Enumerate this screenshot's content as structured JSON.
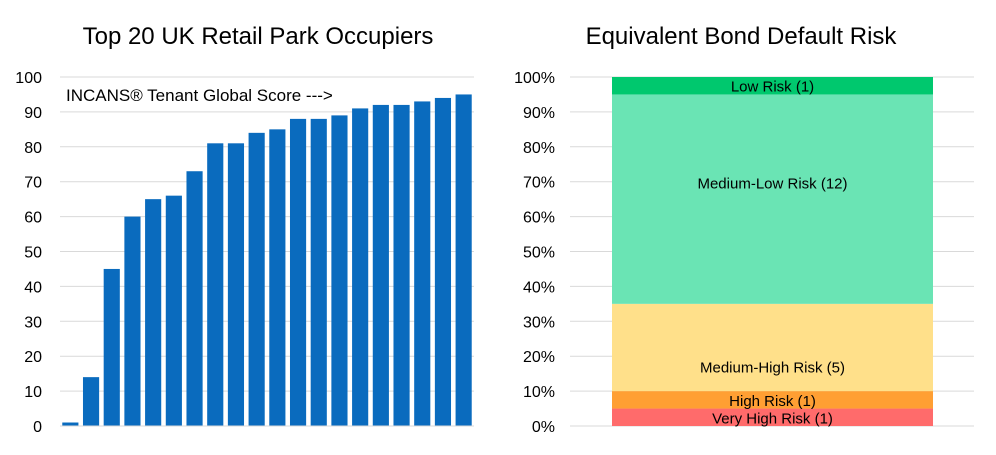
{
  "chart_data": [
    {
      "type": "bar",
      "title": "Top 20 UK Retail Park Occupiers",
      "annotation": "INCANS® Tenant Global Score --->",
      "xlabel": "",
      "ylabel": "",
      "ylim": [
        0,
        100
      ],
      "ytick_labels": [
        "0",
        "10",
        "20",
        "30",
        "40",
        "50",
        "60",
        "70",
        "80",
        "90",
        "100"
      ],
      "grid": true,
      "values": [
        1,
        14,
        45,
        60,
        65,
        66,
        73,
        81,
        81,
        84,
        85,
        88,
        88,
        89,
        91,
        92,
        92,
        93,
        94,
        95
      ],
      "color": "#0A6BBE"
    },
    {
      "type": "bar",
      "subtype": "stacked-100",
      "title": "Equivalent Bond Default Risk",
      "xlabel": "",
      "ylabel": "",
      "ylim": [
        0,
        100
      ],
      "ytick_labels": [
        "0%",
        "10%",
        "20%",
        "30%",
        "40%",
        "50%",
        "60%",
        "70%",
        "80%",
        "90%",
        "100%"
      ],
      "grid": true,
      "segments": [
        {
          "label": "Very High Risk (1)",
          "value": 5,
          "color": "#FF6B6B"
        },
        {
          "label": "High Risk (1)",
          "value": 5,
          "color": "#FF9F33"
        },
        {
          "label": "Medium-High Risk (5)",
          "value": 25,
          "color": "#FFE08A"
        },
        {
          "label": "Medium-Low Risk (12)",
          "value": 60,
          "color": "#6AE4B4"
        },
        {
          "label": "Low Risk (1)",
          "value": 5,
          "color": "#00C86E"
        }
      ]
    }
  ]
}
